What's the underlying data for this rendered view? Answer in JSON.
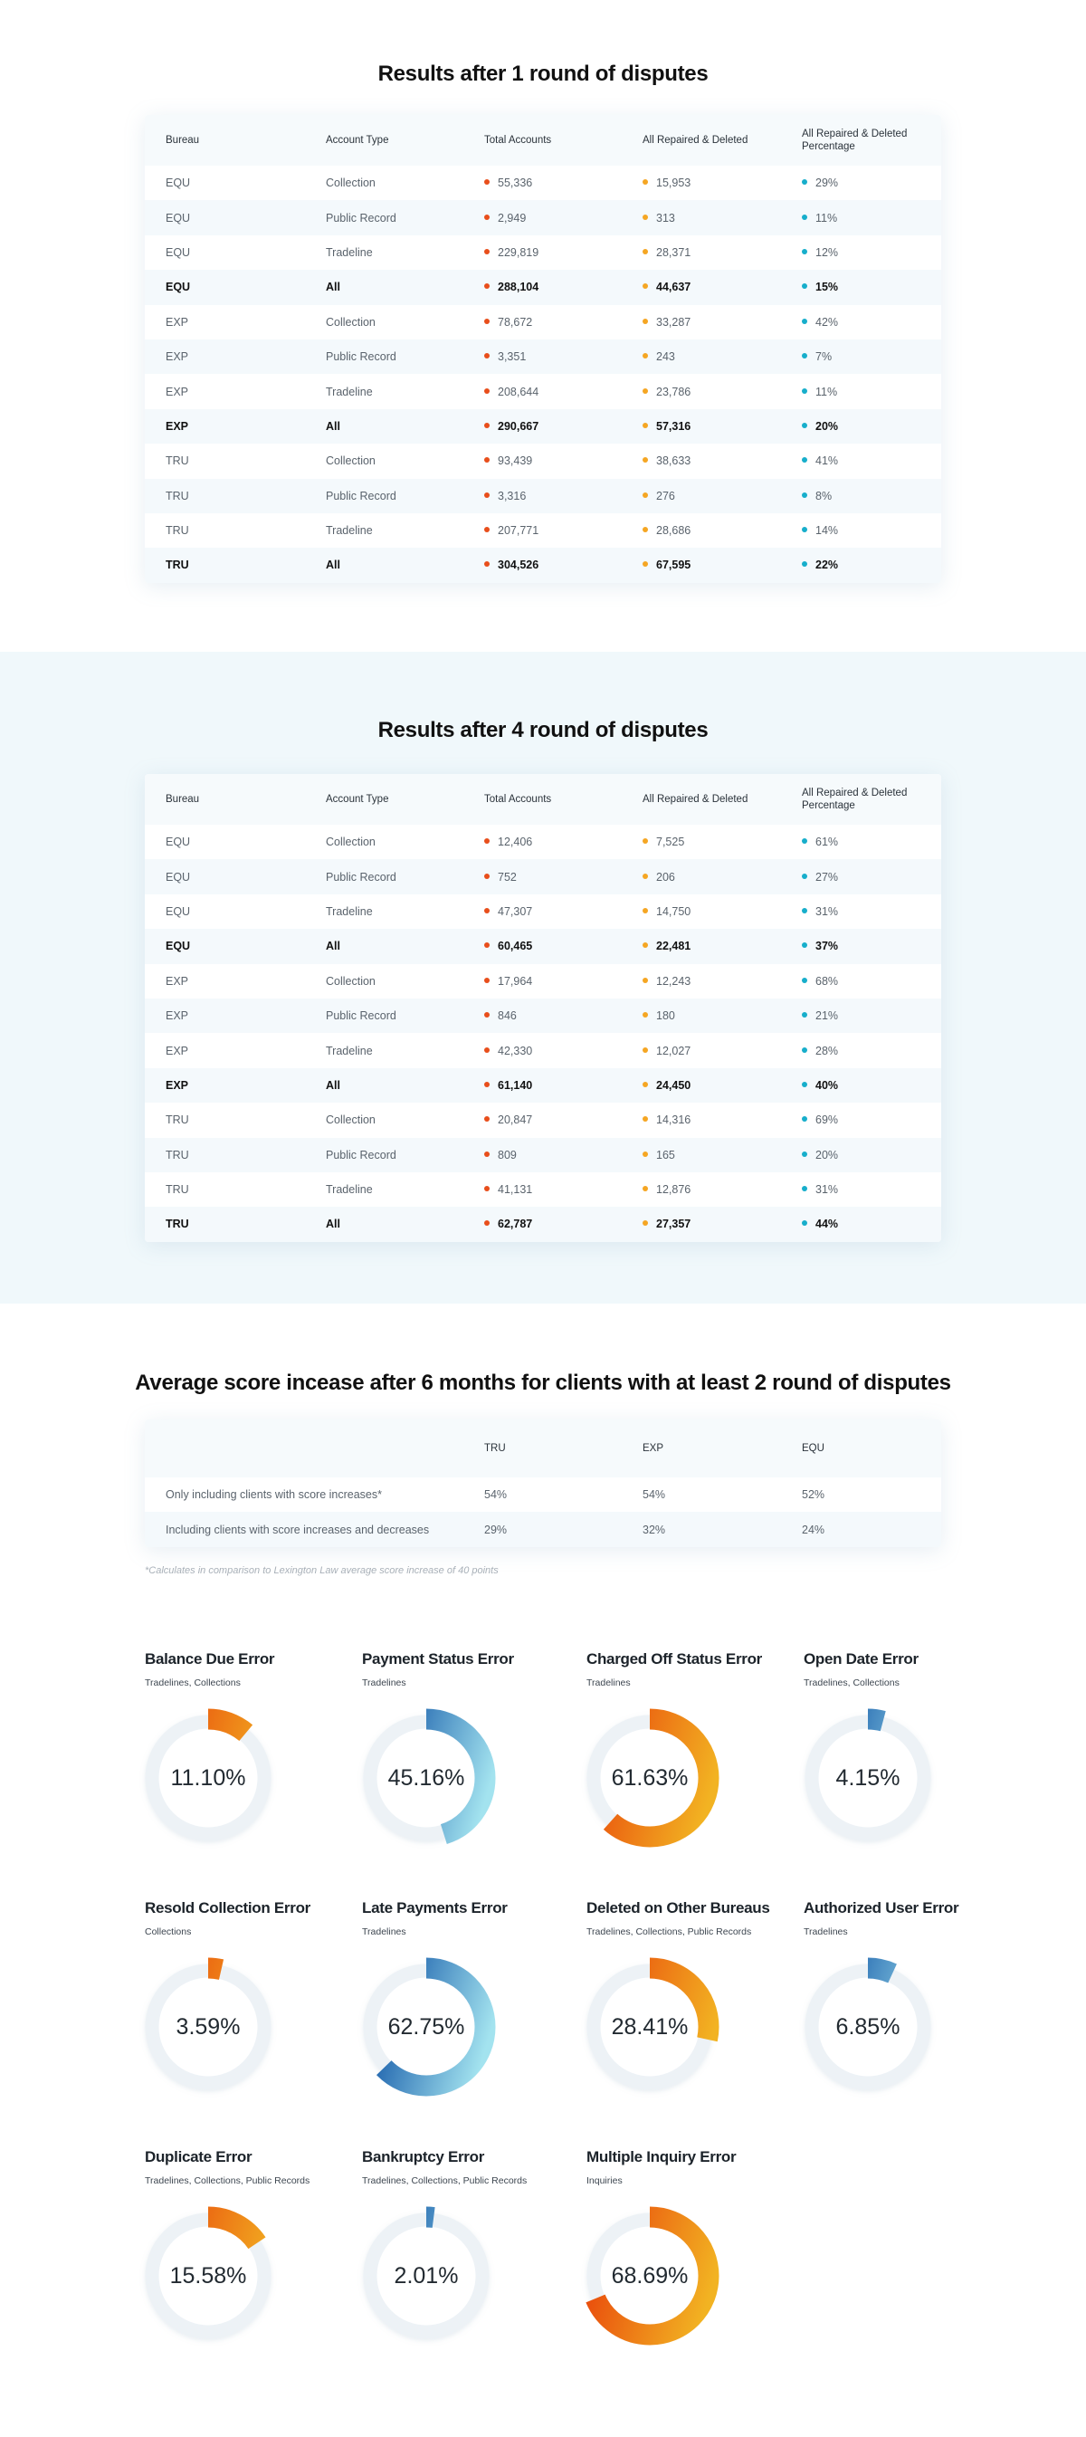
{
  "colors": {
    "total_dot": "#e84e1b",
    "repaired_dot": "#f5a623",
    "pct_dot": "#17aecb",
    "orange_start": "#e94a0c",
    "orange_end": "#f2b322",
    "blue_start": "#0a4fa3",
    "blue_end": "#a3e3ef",
    "track": "#edf2f6"
  },
  "columns": [
    "Bureau",
    "Account Type",
    "Total Accounts",
    "All Repaired & Deleted",
    "All Repaired & Deleted Percentage"
  ],
  "round1": {
    "title": "Results after 1 round of disputes",
    "rows": [
      [
        "EQU",
        "Collection",
        "55,336",
        "15,953",
        "29%"
      ],
      [
        "EQU",
        "Public Record",
        "2,949",
        "313",
        "11%"
      ],
      [
        "EQU",
        "Tradeline",
        "229,819",
        "28,371",
        "12%"
      ],
      [
        "EQU",
        "All",
        "288,104",
        "44,637",
        "15%"
      ],
      [
        "EXP",
        "Collection",
        "78,672",
        "33,287",
        "42%"
      ],
      [
        "EXP",
        "Public Record",
        "3,351",
        "243",
        "7%"
      ],
      [
        "EXP",
        "Tradeline",
        "208,644",
        "23,786",
        "11%"
      ],
      [
        "EXP",
        "All",
        "290,667",
        "57,316",
        "20%"
      ],
      [
        "TRU",
        "Collection",
        "93,439",
        "38,633",
        "41%"
      ],
      [
        "TRU",
        "Public Record",
        "3,316",
        "276",
        "8%"
      ],
      [
        "TRU",
        "Tradeline",
        "207,771",
        "28,686",
        "14%"
      ],
      [
        "TRU",
        "All",
        "304,526",
        "67,595",
        "22%"
      ]
    ]
  },
  "round4": {
    "title": "Results after 4 round of disputes",
    "rows": [
      [
        "EQU",
        "Collection",
        "12,406",
        "7,525",
        "61%"
      ],
      [
        "EQU",
        "Public Record",
        "752",
        "206",
        "27%"
      ],
      [
        "EQU",
        "Tradeline",
        "47,307",
        "14,750",
        "31%"
      ],
      [
        "EQU",
        "All",
        "60,465",
        "22,481",
        "37%"
      ],
      [
        "EXP",
        "Collection",
        "17,964",
        "12,243",
        "68%"
      ],
      [
        "EXP",
        "Public Record",
        "846",
        "180",
        "21%"
      ],
      [
        "EXP",
        "Tradeline",
        "42,330",
        "12,027",
        "28%"
      ],
      [
        "EXP",
        "All",
        "61,140",
        "24,450",
        "40%"
      ],
      [
        "TRU",
        "Collection",
        "20,847",
        "14,316",
        "69%"
      ],
      [
        "TRU",
        "Public Record",
        "809",
        "165",
        "20%"
      ],
      [
        "TRU",
        "Tradeline",
        "41,131",
        "12,876",
        "31%"
      ],
      [
        "TRU",
        "All",
        "62,787",
        "27,357",
        "44%"
      ]
    ]
  },
  "score": {
    "title": "Average score incease after 6 months for clients with at least 2 round of disputes",
    "columns": [
      "",
      "TRU",
      "EXP",
      "EQU"
    ],
    "rows": [
      [
        "Only including clients with score increases*",
        "54%",
        "54%",
        "52%"
      ],
      [
        "Including clients with score increases and decreases",
        "29%",
        "32%",
        "24%"
      ]
    ],
    "footnote": "*Calculates in comparison to Lexington Law average score increase of 40 points"
  },
  "errors": [
    {
      "title": "Balance Due Error",
      "sub": "Tradelines, Collections",
      "label": "11.10%",
      "value": 11.1,
      "color": "orange"
    },
    {
      "title": "Payment Status Error",
      "sub": "Tradelines",
      "label": "45.16%",
      "value": 45.16,
      "color": "blue"
    },
    {
      "title": "Charged Off Status Error",
      "sub": "Tradelines",
      "label": "61.63%",
      "value": 61.63,
      "color": "orange"
    },
    {
      "title": "Open Date Error",
      "sub": "Tradelines, Collections",
      "label": "4.15%",
      "value": 4.15,
      "color": "blue"
    },
    {
      "title": "Resold Collection Error",
      "sub": "Collections",
      "label": "3.59%",
      "value": 3.59,
      "color": "orange"
    },
    {
      "title": "Late Payments Error",
      "sub": "Tradelines",
      "label": "62.75%",
      "value": 62.75,
      "color": "blue"
    },
    {
      "title": "Deleted on Other Bureaus",
      "sub": "Tradelines, Collections, Public Records",
      "label": "28.41%",
      "value": 28.41,
      "color": "orange"
    },
    {
      "title": "Authorized User Error",
      "sub": "Tradelines",
      "label": "6.85%",
      "value": 6.85,
      "color": "blue"
    },
    {
      "title": "Duplicate Error",
      "sub": "Tradelines, Collections, Public Records",
      "label": "15.58%",
      "value": 15.58,
      "color": "orange"
    },
    {
      "title": "Bankruptcy Error",
      "sub": "Tradelines, Collections, Public Records",
      "label": "2.01%",
      "value": 2.01,
      "color": "blue"
    },
    {
      "title": "Multiple Inquiry Error",
      "sub": "Inquiries",
      "label": "68.69%",
      "value": 68.69,
      "color": "orange"
    }
  ]
}
